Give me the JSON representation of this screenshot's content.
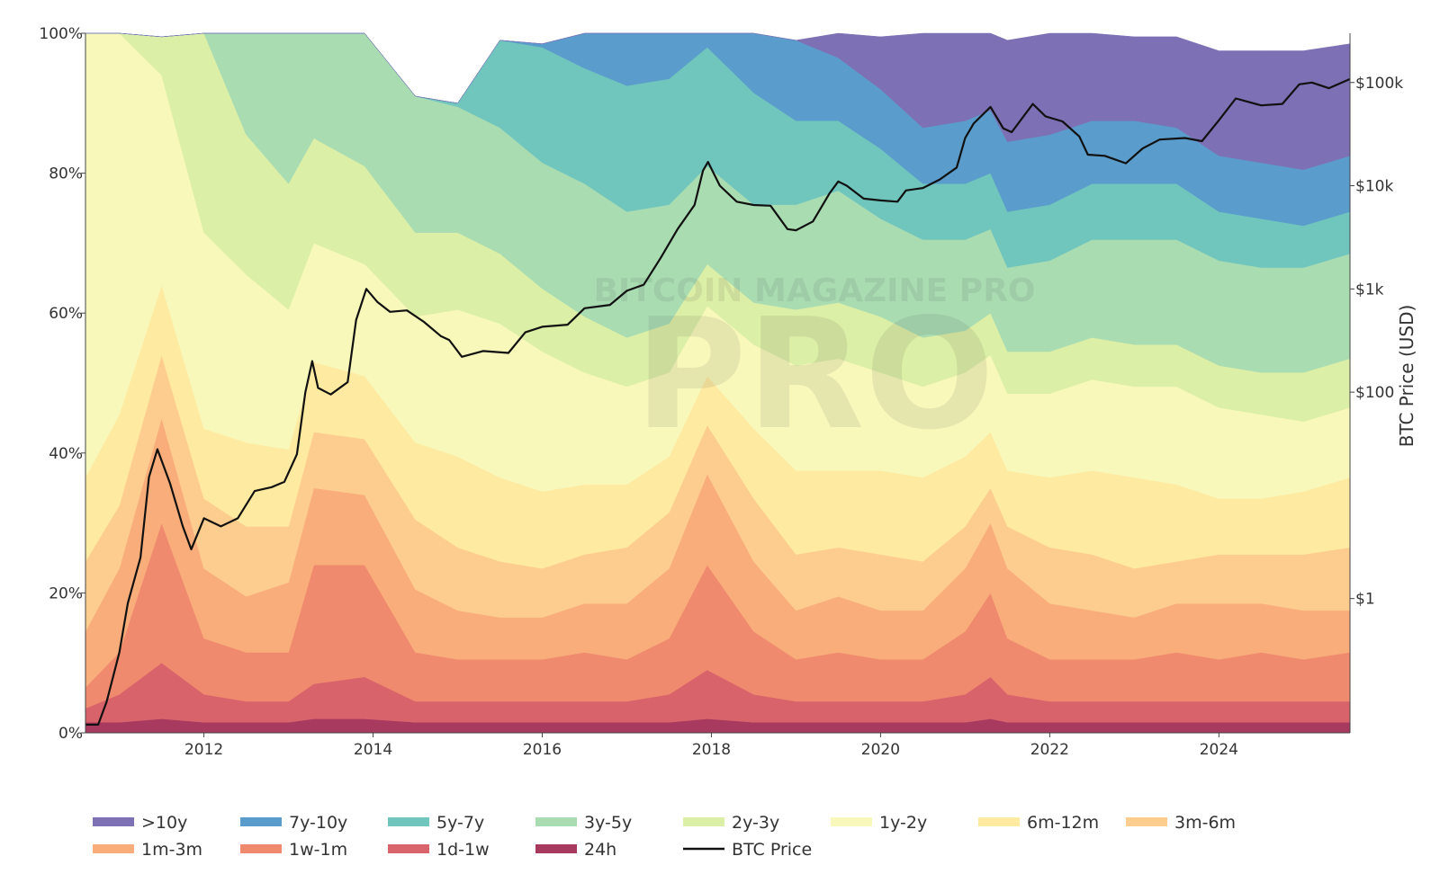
{
  "chart_data": {
    "type": "area",
    "stacking": "percent",
    "title": "",
    "xlabel": "",
    "ylabel_left": "",
    "ylabel_right": "BTC Price (USD)",
    "x_range": [
      2010.6,
      2025.55
    ],
    "y_left_range_pct": [
      0,
      100
    ],
    "y_right_scale": "log",
    "y_right_range_usd": [
      0.05,
      300000
    ],
    "x_ticks": [
      2012,
      2014,
      2016,
      2018,
      2020,
      2022,
      2024
    ],
    "x_tick_labels": [
      "2012",
      "2014",
      "2016",
      "2018",
      "2020",
      "2022",
      "2024"
    ],
    "y_left_ticks": [
      0,
      20,
      40,
      60,
      80,
      100
    ],
    "y_left_tick_labels": [
      "0%",
      "20%",
      "40%",
      "60%",
      "80%",
      "100%"
    ],
    "y_right_ticks": [
      1,
      100,
      1000,
      10000,
      100000
    ],
    "y_right_tick_labels": [
      "$1",
      "$100",
      "$1k",
      "$10k",
      "$100k"
    ],
    "grid": false,
    "legend_position": "bottom",
    "watermark": "BITCOIN MAGAZINE PRO",
    "x": [
      2010.6,
      2011.0,
      2011.5,
      2012.0,
      2012.5,
      2013.0,
      2013.3,
      2013.9,
      2014.5,
      2015.0,
      2015.5,
      2016.0,
      2016.5,
      2017.0,
      2017.5,
      2017.95,
      2018.5,
      2019.0,
      2019.5,
      2020.0,
      2020.5,
      2021.0,
      2021.3,
      2021.5,
      2022.0,
      2022.5,
      2023.0,
      2023.5,
      2024.0,
      2024.5,
      2025.0,
      2025.55
    ],
    "series": [
      {
        "name": "24h",
        "color": "#a83a60",
        "values": [
          1.5,
          1.5,
          2,
          1.5,
          1.5,
          1.5,
          2,
          2,
          1.5,
          1.5,
          1.5,
          1.5,
          1.5,
          1.5,
          1.5,
          2,
          1.5,
          1.5,
          1.5,
          1.5,
          1.5,
          1.5,
          2,
          1.5,
          1.5,
          1.5,
          1.5,
          1.5,
          1.5,
          1.5,
          1.5,
          1.5
        ]
      },
      {
        "name": "1d-1w",
        "color": "#d9636b",
        "values": [
          2,
          4,
          8,
          4,
          3,
          3,
          5,
          6,
          3,
          3,
          3,
          3,
          3,
          3,
          4,
          7,
          4,
          3,
          3,
          3,
          3,
          4,
          6,
          4,
          3,
          3,
          3,
          3,
          3,
          3,
          3,
          3
        ]
      },
      {
        "name": "1w-1m",
        "color": "#f08a6e",
        "values": [
          3,
          6,
          20,
          8,
          7,
          7,
          17,
          16,
          7,
          6,
          6,
          6,
          7,
          6,
          8,
          15,
          9,
          6,
          7,
          6,
          6,
          9,
          12,
          8,
          6,
          6,
          6,
          7,
          6,
          7,
          6,
          7
        ]
      },
      {
        "name": "1m-3m",
        "color": "#f9ad7a",
        "values": [
          8,
          12,
          15,
          10,
          8,
          10,
          11,
          10,
          9,
          7,
          6,
          6,
          7,
          8,
          10,
          13,
          10,
          7,
          8,
          7,
          7,
          9,
          10,
          10,
          8,
          7,
          6,
          7,
          8,
          7,
          7,
          6
        ]
      },
      {
        "name": "3m-6m",
        "color": "#fdcd8f",
        "values": [
          10,
          9,
          9,
          10,
          10,
          8,
          8,
          8,
          10,
          9,
          8,
          7,
          7,
          8,
          8,
          7,
          9,
          8,
          7,
          8,
          7,
          6,
          5,
          6,
          8,
          8,
          7,
          6,
          7,
          7,
          8,
          9
        ]
      },
      {
        "name": "6m-12m",
        "color": "#feeaa1",
        "values": [
          12,
          13,
          10,
          10,
          12,
          11,
          10,
          9,
          11,
          13,
          12,
          11,
          10,
          9,
          8,
          7,
          10,
          12,
          11,
          12,
          12,
          10,
          8,
          8,
          10,
          12,
          13,
          11,
          8,
          8,
          9,
          10
        ]
      },
      {
        "name": "1y-2y",
        "color": "#f8f8bb",
        "values": [
          63.5,
          54.5,
          30,
          28,
          24,
          20,
          17,
          16,
          18,
          21,
          22,
          20,
          16,
          14,
          12,
          10,
          12,
          15,
          16,
          14,
          13,
          12,
          11,
          11,
          12,
          13,
          13,
          14,
          13,
          12,
          10,
          10
        ]
      },
      {
        "name": "2y-3y",
        "color": "#dcefa6",
        "values": [
          0,
          0,
          5.5,
          28.5,
          20,
          18,
          15,
          14,
          12,
          11,
          10,
          9,
          8,
          7,
          7,
          6,
          6,
          8,
          8,
          8,
          7,
          6,
          6,
          6,
          6,
          6,
          6,
          6,
          6,
          6,
          7,
          7
        ]
      },
      {
        "name": "3y-5y",
        "color": "#aadcb2",
        "values": [
          0,
          0,
          0,
          0,
          14.5,
          21.5,
          15.5,
          19,
          19.5,
          18,
          18,
          18,
          19,
          18,
          17,
          14,
          14,
          15,
          16,
          14,
          14,
          13,
          12,
          12,
          13,
          14,
          15,
          15,
          15,
          15,
          15,
          15
        ]
      },
      {
        "name": "5y-7y",
        "color": "#70c6bd",
        "values": [
          0,
          0,
          0,
          0,
          0,
          0,
          0,
          0,
          0,
          0.5,
          12.5,
          16.5,
          16.5,
          18,
          18,
          17,
          16,
          12,
          10,
          10,
          8,
          8,
          8,
          8,
          8,
          8,
          8,
          8,
          7,
          7,
          6,
          6
        ]
      },
      {
        "name": "7y-10y",
        "color": "#5a9ccb",
        "values": [
          0,
          0,
          0,
          0,
          0,
          0,
          0,
          0,
          0,
          0,
          0,
          0.5,
          5.5,
          9.5,
          8.5,
          11,
          10.5,
          11.5,
          9,
          8.5,
          8,
          9,
          9,
          10,
          10,
          9,
          9,
          8,
          8,
          8,
          8,
          8
        ]
      },
      {
        "name": ">10y",
        "color": "#7d70b4",
        "values": [
          0,
          0,
          0,
          0,
          0,
          0,
          0,
          0,
          0,
          0,
          0,
          0,
          0,
          0,
          0,
          0,
          0,
          0,
          3.5,
          7.5,
          13.5,
          14.5,
          12.5,
          14.5,
          14.5,
          12.5,
          12,
          13,
          15,
          16,
          17,
          16
        ]
      }
    ],
    "price_series": {
      "name": "BTC Price",
      "color": "#111111",
      "x": [
        2010.6,
        2010.75,
        2010.85,
        2011.0,
        2011.1,
        2011.25,
        2011.35,
        2011.45,
        2011.6,
        2011.75,
        2011.85,
        2012.0,
        2012.2,
        2012.4,
        2012.6,
        2012.8,
        2012.95,
        2013.1,
        2013.2,
        2013.28,
        2013.35,
        2013.5,
        2013.7,
        2013.8,
        2013.92,
        2014.05,
        2014.2,
        2014.4,
        2014.6,
        2014.8,
        2014.9,
        2015.05,
        2015.3,
        2015.6,
        2015.8,
        2016.0,
        2016.3,
        2016.5,
        2016.8,
        2017.0,
        2017.2,
        2017.4,
        2017.6,
        2017.8,
        2017.9,
        2017.96,
        2018.1,
        2018.3,
        2018.5,
        2018.7,
        2018.9,
        2019.0,
        2019.2,
        2019.4,
        2019.5,
        2019.6,
        2019.8,
        2020.0,
        2020.2,
        2020.3,
        2020.5,
        2020.7,
        2020.9,
        2021.0,
        2021.1,
        2021.3,
        2021.45,
        2021.55,
        2021.8,
        2021.95,
        2022.15,
        2022.35,
        2022.45,
        2022.65,
        2022.9,
        2023.1,
        2023.3,
        2023.6,
        2023.8,
        2024.0,
        2024.2,
        2024.5,
        2024.75,
        2024.95,
        2025.1,
        2025.3,
        2025.55
      ],
      "values": [
        0.06,
        0.06,
        0.1,
        0.3,
        0.9,
        2.5,
        15,
        28,
        13,
        5,
        3,
        6,
        5,
        6,
        11,
        12,
        13.5,
        25,
        100,
        200,
        110,
        95,
        125,
        500,
        1000,
        750,
        600,
        620,
        480,
        350,
        320,
        220,
        250,
        240,
        380,
        430,
        450,
        650,
        700,
        960,
        1100,
        2000,
        3800,
        6500,
        14000,
        17000,
        10000,
        7000,
        6500,
        6400,
        3800,
        3700,
        4500,
        8500,
        11000,
        10000,
        7500,
        7200,
        7000,
        9000,
        9500,
        11500,
        15000,
        29000,
        40000,
        58000,
        36000,
        33000,
        62000,
        47000,
        42000,
        30000,
        20000,
        19500,
        16500,
        23000,
        28000,
        29000,
        27000,
        43000,
        70000,
        60000,
        62000,
        96000,
        100000,
        88000,
        108000
      ]
    },
    "legend": [
      ">10y",
      "7y-10y",
      "5y-7y",
      "3y-5y",
      "2y-3y",
      "1y-2y",
      "6m-12m",
      "3m-6m",
      "1m-3m",
      "1w-1m",
      "1d-1w",
      "24h",
      "BTC Price"
    ]
  }
}
